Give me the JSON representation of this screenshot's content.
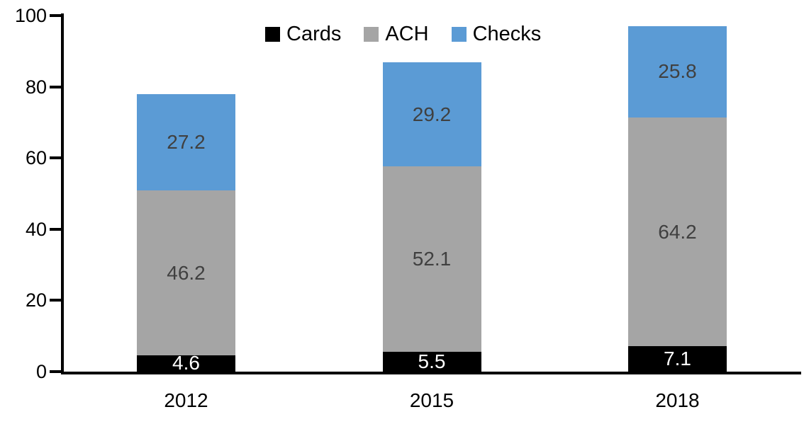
{
  "chart_data": {
    "type": "bar",
    "stacked": true,
    "title": "",
    "xlabel": "",
    "ylabel": "",
    "categories": [
      "2012",
      "2015",
      "2018"
    ],
    "series": [
      {
        "name": "Cards",
        "color": "#000000",
        "label_color": "#FFFFFF",
        "values": [
          4.6,
          5.5,
          7.1
        ]
      },
      {
        "name": "ACH",
        "color": "#A5A5A5",
        "label_color": "#404040",
        "values": [
          46.2,
          52.1,
          64.2
        ]
      },
      {
        "name": "Checks",
        "color": "#5B9BD5",
        "label_color": "#404040",
        "values": [
          27.2,
          29.2,
          25.8
        ]
      }
    ],
    "totals": [
      78.0,
      86.8,
      97.1
    ],
    "ylim": [
      0,
      100
    ],
    "yticks": [
      0,
      20,
      40,
      60,
      80,
      100
    ],
    "grid": false,
    "legend_position": "top-center",
    "axis_color": "#000000",
    "background_color": "#FFFFFF"
  }
}
